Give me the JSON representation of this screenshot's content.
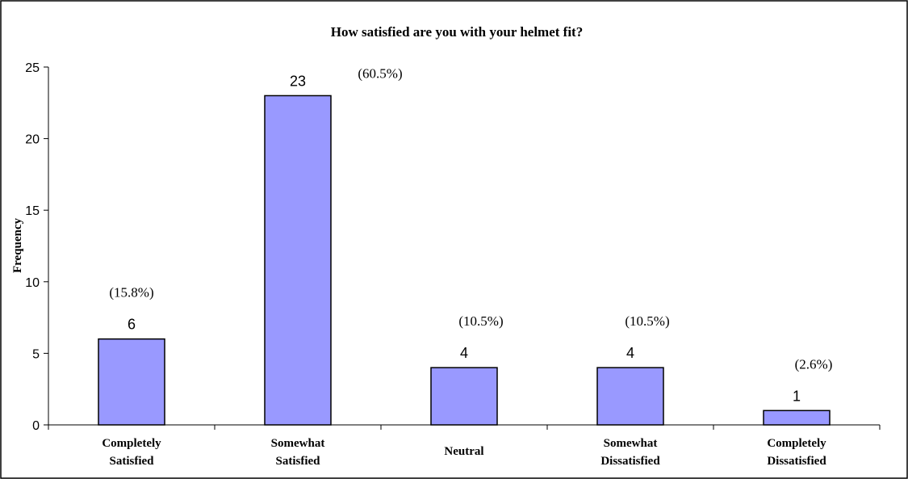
{
  "chart_data": {
    "type": "bar",
    "title": "How satisfied are you with your helmet fit?",
    "xlabel": "",
    "ylabel": "Frequency",
    "categories": [
      [
        "Completely",
        "Satisfied"
      ],
      [
        "Somewhat",
        "Satisfied"
      ],
      [
        "Neutral"
      ],
      [
        "Somewhat",
        "Dissatisfied"
      ],
      [
        "Completely",
        "Dissatisfied"
      ]
    ],
    "values": [
      6,
      23,
      4,
      4,
      1
    ],
    "value_labels": [
      "6",
      "23",
      "4",
      "4",
      "1"
    ],
    "percent_labels": [
      "(15.8%)",
      "(60.5%)",
      "(10.5%)",
      "(10.5%)",
      "(2.6%)"
    ],
    "ylim": [
      0,
      25
    ],
    "yticks": [
      0,
      5,
      10,
      15,
      20,
      25
    ],
    "ytick_labels": [
      "0",
      "5",
      "10",
      "15",
      "20",
      "25"
    ],
    "grid": false,
    "legend": "none",
    "colors": {
      "bar_fill": "#9999ff",
      "bar_stroke": "#000000",
      "axis": "#000000",
      "background": "#ffffff",
      "frame": "#000000"
    }
  }
}
